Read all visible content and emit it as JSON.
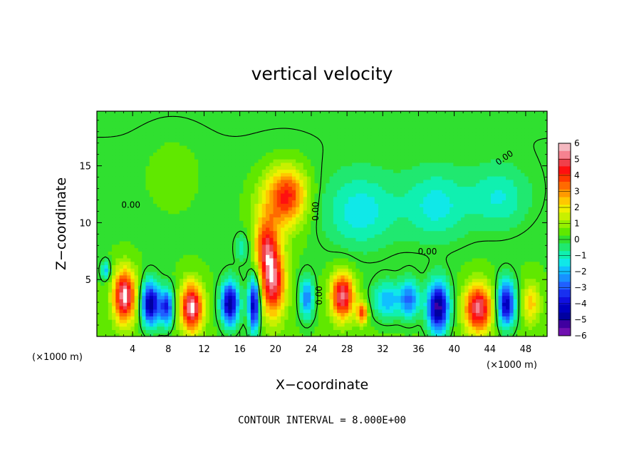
{
  "chart_data": {
    "type": "heatmap",
    "title": "vertical velocity",
    "xlabel": "X−coordinate",
    "ylabel": "Z−coordinate",
    "x_unit": "(×1000 m)",
    "y_unit": "(×1000 m)",
    "xlim": [
      0,
      50.4
    ],
    "ylim": [
      0,
      19.8
    ],
    "x_ticks": [
      4,
      8,
      12,
      16,
      20,
      24,
      28,
      32,
      36,
      40,
      44,
      48
    ],
    "y_ticks": [
      5,
      10,
      15
    ],
    "colorbar": {
      "ticks": [
        "6",
        "5",
        "4",
        "3",
        "2",
        "1",
        "0",
        "−1",
        "−2",
        "−3",
        "−4",
        "−5",
        "−6"
      ],
      "levels": [
        {
          "value": 6,
          "color": "#f4b8c0"
        },
        {
          "value": 5.5,
          "color": "#f68290"
        },
        {
          "value": 5,
          "color": "#f0404a"
        },
        {
          "value": 4.5,
          "color": "#ff1010"
        },
        {
          "value": 4,
          "color": "#ff3a00"
        },
        {
          "value": 3.5,
          "color": "#ff6a00"
        },
        {
          "value": 3,
          "color": "#ff9a00"
        },
        {
          "value": 2.5,
          "color": "#ffc800"
        },
        {
          "value": 2,
          "color": "#f0f000"
        },
        {
          "value": 1.5,
          "color": "#c8f000"
        },
        {
          "value": 1,
          "color": "#96f000"
        },
        {
          "value": 0.5,
          "color": "#60e800"
        },
        {
          "value": 0,
          "color": "#30e030"
        },
        {
          "value": -0.5,
          "color": "#20e870"
        },
        {
          "value": -1,
          "color": "#10f0b0"
        },
        {
          "value": -1.5,
          "color": "#10e8e8"
        },
        {
          "value": -2,
          "color": "#10c0ff"
        },
        {
          "value": -2.5,
          "color": "#1890ff"
        },
        {
          "value": -3,
          "color": "#2060ff"
        },
        {
          "value": -3.5,
          "color": "#1830f0"
        },
        {
          "value": -4,
          "color": "#1010e0"
        },
        {
          "value": -4.5,
          "color": "#0000c0"
        },
        {
          "value": -5,
          "color": "#0000a0"
        },
        {
          "value": -5.5,
          "color": "#4000a0"
        },
        {
          "value": -6,
          "color": "#7010b0"
        }
      ]
    },
    "contour_label": "0.00",
    "cells": [
      {
        "x": 3.1,
        "z": 3.6,
        "w": 5.6,
        "rx": 1.25,
        "rz": 2.3
      },
      {
        "x": 6.0,
        "z": 2.9,
        "w": -5.4,
        "rx": 1.0,
        "rz": 1.9
      },
      {
        "x": 7.8,
        "z": 2.6,
        "w": -4.0,
        "rx": 0.8,
        "rz": 1.6
      },
      {
        "x": 10.6,
        "z": 2.6,
        "w": 5.6,
        "rx": 1.25,
        "rz": 2.1
      },
      {
        "x": 14.9,
        "z": 2.9,
        "w": -5.4,
        "rx": 1.0,
        "rz": 1.9
      },
      {
        "x": 17.6,
        "z": 2.9,
        "w": -5.2,
        "rx": 0.65,
        "rz": 2.4
      },
      {
        "x": 19.7,
        "z": 4.8,
        "w": 5.0,
        "rx": 1.4,
        "rz": 3.0
      },
      {
        "x": 18.9,
        "z": 8.0,
        "w": 3.5,
        "rx": 1.3,
        "rz": 2.4
      },
      {
        "x": 20.5,
        "z": 11.8,
        "w": 2.6,
        "rx": 2.6,
        "rz": 2.8
      },
      {
        "x": 21.6,
        "z": 12.8,
        "w": 2.2,
        "rx": 2.0,
        "rz": 2.2
      },
      {
        "x": 23.5,
        "z": 3.4,
        "w": -3.0,
        "rx": 0.8,
        "rz": 1.8
      },
      {
        "x": 27.5,
        "z": 3.6,
        "w": 5.2,
        "rx": 1.3,
        "rz": 2.0
      },
      {
        "x": 29.7,
        "z": 2.1,
        "w": 3.5,
        "rx": 0.6,
        "rz": 1.0
      },
      {
        "x": 32.5,
        "z": 3.2,
        "w": -2.4,
        "rx": 1.6,
        "rz": 1.6
      },
      {
        "x": 35.0,
        "z": 3.3,
        "w": -3.0,
        "rx": 1.1,
        "rz": 1.7
      },
      {
        "x": 38.2,
        "z": 2.6,
        "w": -5.8,
        "rx": 1.2,
        "rz": 2.2
      },
      {
        "x": 42.7,
        "z": 2.5,
        "w": 5.2,
        "rx": 1.55,
        "rz": 2.1
      },
      {
        "x": 45.8,
        "z": 2.9,
        "w": -5.0,
        "rx": 1.0,
        "rz": 2.0
      },
      {
        "x": 48.6,
        "z": 3.0,
        "w": 2.2,
        "rx": 1.0,
        "rz": 1.8
      },
      {
        "x": 29.5,
        "z": 11.0,
        "w": -1.7,
        "rx": 4.0,
        "rz": 3.2
      },
      {
        "x": 38.0,
        "z": 11.5,
        "w": -1.6,
        "rx": 3.6,
        "rz": 3.0
      },
      {
        "x": 45.0,
        "z": 12.2,
        "w": -1.4,
        "rx": 3.2,
        "rz": 2.6
      },
      {
        "x": 8.5,
        "z": 14.5,
        "w": 0.5,
        "rx": 3.0,
        "rz": 3.0
      },
      {
        "x": 1.0,
        "z": 5.8,
        "w": -2.2,
        "rx": 0.5,
        "rz": 0.8
      },
      {
        "x": 16.3,
        "z": 7.8,
        "w": -1.2,
        "rx": 0.8,
        "rz": 1.2
      }
    ]
  },
  "footer": {
    "note": "CONTOUR INTERVAL = 8.000E+00"
  }
}
